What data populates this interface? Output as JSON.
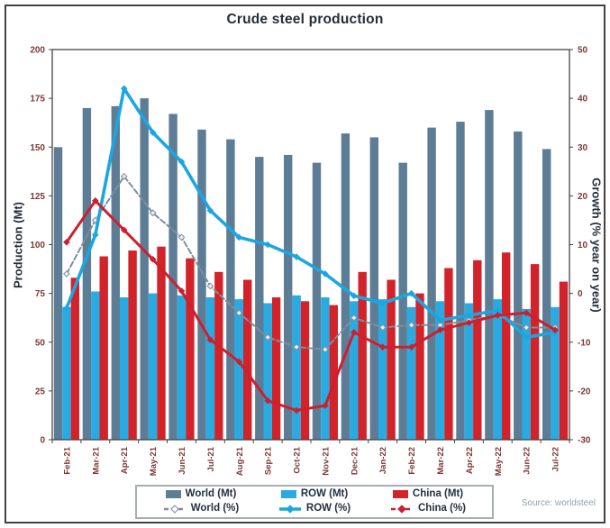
{
  "title": "Crude steel production",
  "source": "Source: worldsteel",
  "colors": {
    "world_bar": "#5d7d96",
    "row_bar": "#29abe2",
    "china_bar": "#d2232a",
    "world_line": "#7e8f9d",
    "row_line": "#1ca6e0",
    "china_line": "#cb2030",
    "tick_label": "#7d3935",
    "axis_title": "#222e3a",
    "frame": "#444444",
    "source_text": "#8ba3b5"
  },
  "legend": {
    "items": [
      {
        "label": "World (Mt)",
        "icon": "swatch",
        "color_key": "world_bar"
      },
      {
        "label": "ROW (Mt)",
        "icon": "swatch",
        "color_key": "row_bar"
      },
      {
        "label": "China (Mt)",
        "icon": "swatch",
        "color_key": "china_bar"
      },
      {
        "label": "World (%)",
        "icon": "line-dashed-open",
        "color_key": "world_line"
      },
      {
        "label": "ROW (%)",
        "icon": "line-solid",
        "color_key": "row_line"
      },
      {
        "label": "China (%)",
        "icon": "line-dashed",
        "color_key": "china_line"
      }
    ]
  },
  "chart_data": {
    "type": "bar",
    "subtype": "grouped bars with overlaid growth lines",
    "title": "Crude steel production",
    "categories": [
      "Feb-21",
      "Mar-21",
      "Apr-21",
      "May-21",
      "Jun-21",
      "Jul-21",
      "Aug-21",
      "Sep-21",
      "Oct-21",
      "Nov-21",
      "Dec-21",
      "Jan-22",
      "Feb-22",
      "Mar-22",
      "Apr-22",
      "May-22",
      "Jun-22",
      "Jul-22"
    ],
    "bar_series": [
      {
        "name": "World (Mt)",
        "key": "world-mt",
        "axis": "left",
        "color_key": "world_bar",
        "values": [
          150,
          170,
          171,
          175,
          167,
          159,
          154,
          145,
          146,
          142,
          157,
          155,
          142,
          160,
          163,
          169,
          158,
          149
        ]
      },
      {
        "name": "ROW (Mt)",
        "key": "row-mt",
        "axis": "left",
        "color_key": "row_bar",
        "values": [
          68,
          76,
          73,
          75,
          74,
          73,
          72,
          70,
          74,
          73,
          71,
          72,
          68,
          71,
          70,
          72,
          67,
          68
        ]
      },
      {
        "name": "China (Mt)",
        "key": "china-mt",
        "axis": "left",
        "color_key": "china_bar",
        "values": [
          83,
          94,
          97,
          99,
          93,
          86,
          82,
          73,
          71,
          69,
          86,
          82,
          75,
          88,
          92,
          96,
          90,
          81
        ]
      }
    ],
    "line_series": [
      {
        "name": "World (%)",
        "key": "world-pct",
        "axis": "right",
        "color_key": "world_line",
        "width": 2,
        "dash": "6 3",
        "marker": "diamond-open",
        "values": [
          4,
          15,
          24,
          16.5,
          11.5,
          1.5,
          -4,
          -9,
          -11,
          -11.5,
          -5,
          -7,
          -6.5,
          -6.5,
          -5.5,
          -4.5,
          -7,
          -7
        ]
      },
      {
        "name": "ROW (%)",
        "key": "row-pct",
        "axis": "right",
        "color_key": "row_line",
        "width": 3.6,
        "dash": null,
        "marker": "diamond",
        "values": [
          -3,
          12,
          42,
          33,
          27,
          17,
          11.5,
          10,
          7.5,
          4,
          -0.5,
          -2,
          0,
          -5.5,
          -4.5,
          -3.5,
          -9,
          -8
        ]
      },
      {
        "name": "China (%)",
        "key": "china-pct",
        "axis": "right",
        "color_key": "china_line",
        "width": 3,
        "dash": null,
        "marker": "diamond",
        "values": [
          10.5,
          19,
          13,
          7,
          0.5,
          -9.5,
          -14,
          -22,
          -24,
          -23,
          -8,
          -11,
          -11,
          -7.5,
          -6,
          -4.5,
          -4,
          -7.5
        ]
      }
    ],
    "left_axis": {
      "title": "Production (Mt)",
      "min": 0,
      "max": 200,
      "ticks": [
        0,
        25,
        50,
        75,
        100,
        125,
        150,
        175,
        200
      ]
    },
    "right_axis": {
      "title": "Growth (% year on year)",
      "min": -30,
      "max": 50,
      "ticks": [
        50,
        40,
        30,
        20,
        10,
        0,
        -10,
        -20,
        -30
      ]
    },
    "grid": false,
    "legend_position": "bottom"
  }
}
